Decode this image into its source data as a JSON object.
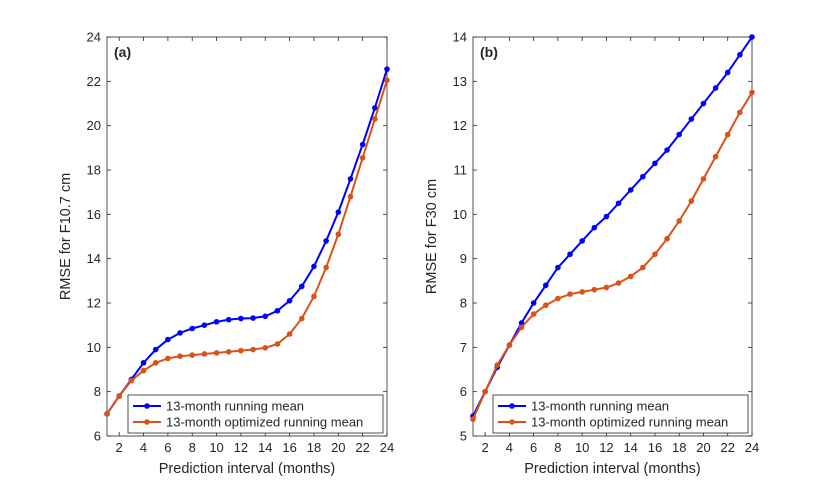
{
  "chart_data": [
    {
      "type": "line",
      "panel_label": "(a)",
      "xlabel": "Prediction interval (months)",
      "ylabel": "RMSE for F10.7 cm",
      "xlim": [
        1,
        24
      ],
      "ylim": [
        6,
        24
      ],
      "xticks": [
        2,
        4,
        6,
        8,
        10,
        12,
        14,
        16,
        18,
        20,
        22,
        24
      ],
      "yticks": [
        6,
        8,
        10,
        12,
        14,
        16,
        18,
        20,
        22,
        24
      ],
      "legend_position": "bottom-right",
      "x": [
        1,
        2,
        3,
        4,
        5,
        6,
        7,
        8,
        9,
        10,
        11,
        12,
        13,
        14,
        15,
        16,
        17,
        18,
        19,
        20,
        21,
        22,
        23,
        24
      ],
      "series": [
        {
          "name": "13-month running mean",
          "color": "#0000ff",
          "values": [
            7.0,
            7.8,
            8.55,
            9.3,
            9.9,
            10.35,
            10.65,
            10.85,
            11.0,
            11.15,
            11.25,
            11.3,
            11.32,
            11.4,
            11.65,
            12.1,
            12.75,
            13.65,
            14.8,
            16.1,
            17.6,
            19.15,
            20.8,
            22.55
          ]
        },
        {
          "name": "13-month optimized running mean",
          "color": "#d95319",
          "values": [
            7.0,
            7.8,
            8.5,
            8.95,
            9.3,
            9.5,
            9.6,
            9.65,
            9.7,
            9.75,
            9.8,
            9.85,
            9.9,
            9.98,
            10.15,
            10.6,
            11.3,
            12.3,
            13.6,
            15.1,
            16.8,
            18.55,
            20.3,
            22.05
          ]
        }
      ]
    },
    {
      "type": "line",
      "panel_label": "(b)",
      "xlabel": "Prediction interval (months)",
      "ylabel": "RMSE for F30 cm",
      "xlim": [
        1,
        24
      ],
      "ylim": [
        5,
        14
      ],
      "xticks": [
        2,
        4,
        6,
        8,
        10,
        12,
        14,
        16,
        18,
        20,
        22,
        24
      ],
      "yticks": [
        5,
        6,
        7,
        8,
        9,
        10,
        11,
        12,
        13,
        14
      ],
      "legend_position": "bottom-right",
      "x": [
        1,
        2,
        3,
        4,
        5,
        6,
        7,
        8,
        9,
        10,
        11,
        12,
        13,
        14,
        15,
        16,
        17,
        18,
        19,
        20,
        21,
        22,
        23,
        24
      ],
      "series": [
        {
          "name": "13-month running mean",
          "color": "#0000ff",
          "values": [
            5.45,
            6.0,
            6.55,
            7.05,
            7.55,
            8.0,
            8.4,
            8.8,
            9.1,
            9.4,
            9.7,
            9.95,
            10.25,
            10.55,
            10.85,
            11.15,
            11.45,
            11.8,
            12.15,
            12.5,
            12.85,
            13.2,
            13.6,
            14.0
          ]
        },
        {
          "name": "13-month optimized running mean",
          "color": "#d95319",
          "values": [
            5.38,
            6.0,
            6.6,
            7.05,
            7.45,
            7.75,
            7.95,
            8.1,
            8.2,
            8.25,
            8.3,
            8.35,
            8.45,
            8.6,
            8.8,
            9.1,
            9.45,
            9.85,
            10.3,
            10.8,
            11.3,
            11.8,
            12.3,
            12.75
          ]
        }
      ]
    }
  ]
}
